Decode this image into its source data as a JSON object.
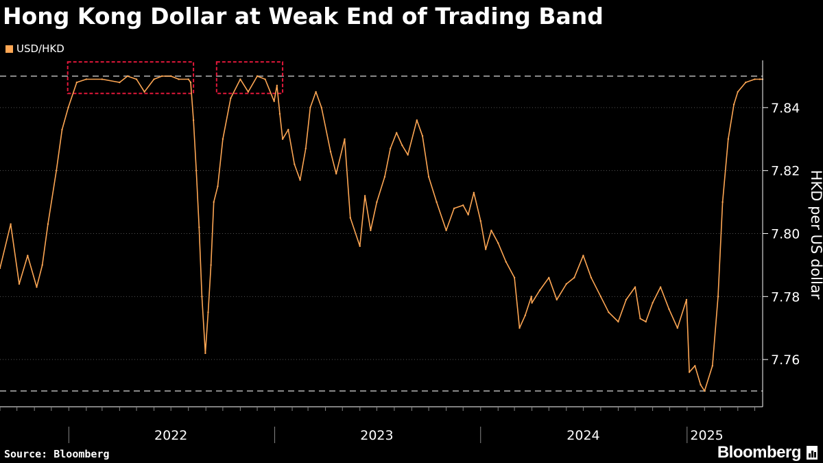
{
  "header": {
    "title": "Hong Kong Dollar at Weak End of Trading Band"
  },
  "footer": {
    "source": "Source: Bloomberg",
    "brand": "Bloomberg"
  },
  "colors": {
    "background": "#000000",
    "series": "#FFA754",
    "band_line": "#8a8a8a",
    "highlight_box": "#E3183B",
    "text": "#FFFFFF"
  },
  "chart_data": {
    "type": "line",
    "title": "Hong Kong Dollar at Weak End of Trading Band",
    "ylabel": "HKD per US dollar",
    "xlabel": "",
    "ylim": [
      7.745,
      7.855
    ],
    "y_ticks": [
      7.76,
      7.78,
      7.8,
      7.82,
      7.84
    ],
    "y_tick_labels": [
      "7.76",
      "7.78",
      "7.80",
      "7.82",
      "7.84"
    ],
    "x_range": [
      "2021-09-01",
      "2025-05-15"
    ],
    "x_year_labels": [
      {
        "label": "2022",
        "date": "2022-07-01"
      },
      {
        "label": "2023",
        "date": "2023-07-01"
      },
      {
        "label": "2024",
        "date": "2024-07-01"
      },
      {
        "label": "2025",
        "date": "2025-02-05"
      }
    ],
    "x_year_boundaries": [
      "2022-01-01",
      "2023-01-01",
      "2024-01-01",
      "2025-01-01"
    ],
    "reference_lines": [
      {
        "label": "",
        "value": 7.85
      },
      {
        "label": "",
        "value": 7.75
      }
    ],
    "highlight_boxes": [
      {
        "x": [
          "2021-12-30",
          "2022-08-10"
        ],
        "y": [
          7.8445,
          7.8545
        ]
      },
      {
        "x": [
          "2022-09-20",
          "2023-01-15"
        ],
        "y": [
          7.8445,
          7.8545
        ]
      }
    ],
    "legend": "top-left",
    "grid": "horizontal dotted",
    "series": [
      {
        "name": "USD/HKD",
        "x": [
          "2021-09-01",
          "2021-09-20",
          "2021-10-05",
          "2021-10-20",
          "2021-11-05",
          "2021-11-15",
          "2021-11-25",
          "2021-12-10",
          "2021-12-20",
          "2021-12-31",
          "2022-01-15",
          "2022-02-01",
          "2022-03-01",
          "2022-04-01",
          "2022-04-15",
          "2022-05-01",
          "2022-05-15",
          "2022-06-01",
          "2022-06-15",
          "2022-07-01",
          "2022-07-15",
          "2022-08-01",
          "2022-08-05",
          "2022-08-10",
          "2022-08-15",
          "2022-08-20",
          "2022-08-25",
          "2022-08-31",
          "2022-09-05",
          "2022-09-10",
          "2022-09-15",
          "2022-09-22",
          "2022-10-01",
          "2022-10-15",
          "2022-11-01",
          "2022-11-15",
          "2022-12-01",
          "2022-12-15",
          "2022-12-31",
          "2023-01-05",
          "2023-01-10",
          "2023-01-15",
          "2023-01-25",
          "2023-02-05",
          "2023-02-15",
          "2023-02-25",
          "2023-03-05",
          "2023-03-15",
          "2023-03-25",
          "2023-04-10",
          "2023-04-20",
          "2023-05-05",
          "2023-05-15",
          "2023-06-01",
          "2023-06-10",
          "2023-06-20",
          "2023-07-01",
          "2023-07-15",
          "2023-07-25",
          "2023-08-05",
          "2023-08-15",
          "2023-08-25",
          "2023-09-10",
          "2023-09-20",
          "2023-10-01",
          "2023-10-15",
          "2023-11-01",
          "2023-11-15",
          "2023-12-01",
          "2023-12-10",
          "2023-12-20",
          "2024-01-01",
          "2024-01-10",
          "2024-01-20",
          "2024-02-01",
          "2024-02-15",
          "2024-03-01",
          "2024-03-10",
          "2024-03-20",
          "2024-03-31",
          "2024-04-01",
          "2024-04-15",
          "2024-05-01",
          "2024-05-15",
          "2024-06-01",
          "2024-06-15",
          "2024-07-01",
          "2024-07-15",
          "2024-08-01",
          "2024-08-15",
          "2024-09-01",
          "2024-09-15",
          "2024-10-01",
          "2024-10-10",
          "2024-10-20",
          "2024-11-01",
          "2024-11-15",
          "2024-11-30",
          "2024-12-15",
          "2024-12-31",
          "2025-01-05",
          "2025-01-15",
          "2025-01-25",
          "2025-02-01",
          "2025-02-15",
          "2025-02-25",
          "2025-03-05",
          "2025-03-15",
          "2025-03-25",
          "2025-04-01",
          "2025-04-15",
          "2025-05-01",
          "2025-05-10",
          "2025-05-15"
        ],
        "values": [
          7.789,
          7.803,
          7.784,
          7.793,
          7.783,
          7.79,
          7.803,
          7.82,
          7.833,
          7.84,
          7.848,
          7.849,
          7.849,
          7.848,
          7.85,
          7.849,
          7.845,
          7.849,
          7.85,
          7.85,
          7.849,
          7.849,
          7.848,
          7.836,
          7.82,
          7.802,
          7.78,
          7.762,
          7.775,
          7.79,
          7.81,
          7.815,
          7.83,
          7.843,
          7.849,
          7.845,
          7.85,
          7.849,
          7.842,
          7.847,
          7.838,
          7.83,
          7.833,
          7.822,
          7.817,
          7.827,
          7.84,
          7.845,
          7.84,
          7.826,
          7.819,
          7.83,
          7.805,
          7.796,
          7.812,
          7.801,
          7.81,
          7.818,
          7.827,
          7.832,
          7.828,
          7.825,
          7.836,
          7.831,
          7.818,
          7.81,
          7.801,
          7.808,
          7.809,
          7.806,
          7.813,
          7.804,
          7.795,
          7.801,
          7.797,
          7.791,
          7.786,
          7.77,
          7.774,
          7.78,
          7.778,
          7.782,
          7.786,
          7.779,
          7.784,
          7.786,
          7.793,
          7.786,
          7.78,
          7.775,
          7.772,
          7.779,
          7.783,
          7.773,
          7.772,
          7.778,
          7.783,
          7.776,
          7.77,
          7.779,
          7.756,
          7.758,
          7.752,
          7.75,
          7.758,
          7.78,
          7.81,
          7.83,
          7.841,
          7.845,
          7.848,
          7.849,
          7.849,
          7.849
        ]
      }
    ]
  }
}
